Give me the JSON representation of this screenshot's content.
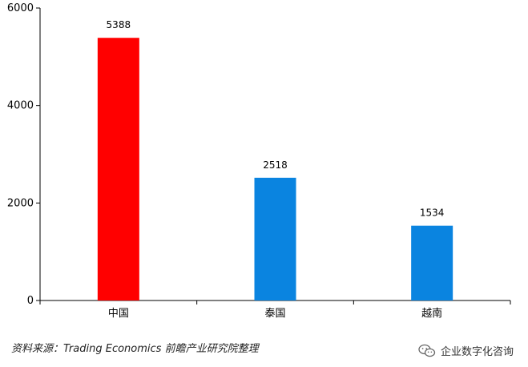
{
  "chart_data": {
    "type": "bar",
    "categories": [
      "中国",
      "泰国",
      "越南"
    ],
    "values": [
      5388,
      2518,
      1534
    ],
    "value_labels": [
      "5388",
      "2518",
      "1534"
    ],
    "bar_colors": [
      "#ff0000",
      "#0a84e0",
      "#0a84e0"
    ],
    "ylim": [
      0,
      6000
    ],
    "yticks": [
      0,
      2000,
      4000,
      6000
    ],
    "ytick_labels": [
      "0",
      "2000",
      "4000",
      "6000"
    ],
    "grid": false,
    "title": "",
    "xlabel": "",
    "ylabel": ""
  },
  "source_text": "资料来源：Trading Economics 前瞻产业研究院整理",
  "watermark_text": "企业数字化咨询",
  "watermark_icon": "wechat-icon"
}
